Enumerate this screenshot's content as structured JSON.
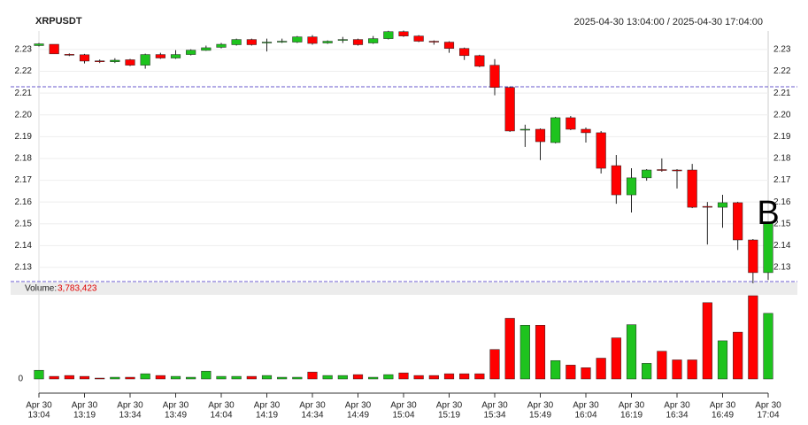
{
  "chart_data": {
    "type": "candlestick",
    "title": "XRPUSDT",
    "range_label": "2025-04-30 13:04:00 / 2025-04-30 17:04:00",
    "category_date": "Apr 30",
    "categories": [
      "13:04",
      null,
      null,
      "13:19",
      null,
      null,
      "13:34",
      null,
      null,
      "13:49",
      null,
      null,
      "14:04",
      null,
      null,
      "14:19",
      null,
      null,
      "14:34",
      null,
      null,
      "14:49",
      null,
      null,
      "15:04",
      null,
      null,
      "15:19",
      null,
      null,
      "15:34",
      null,
      null,
      "15:49",
      null,
      null,
      "16:04",
      null,
      null,
      "16:19",
      null,
      null,
      "16:34",
      null,
      null,
      "16:49",
      null,
      null,
      "17:04"
    ],
    "open": [
      2.2318,
      2.2324,
      2.2278,
      2.2276,
      2.2248,
      2.2244,
      2.2253,
      2.2228,
      2.2277,
      2.2261,
      2.2277,
      2.2296,
      2.231,
      2.2322,
      2.2346,
      2.233,
      2.2336,
      2.2334,
      2.2358,
      2.233,
      2.2342,
      2.2346,
      2.233,
      2.235,
      2.2382,
      2.2362,
      2.2338,
      2.2334,
      2.2305,
      2.2272,
      2.2228,
      2.2126,
      2.193,
      2.1934,
      2.1873,
      2.1987,
      2.1934,
      2.1918,
      2.1767,
      2.1633,
      2.1711,
      2.1749,
      2.1747,
      2.1747,
      2.158,
      2.1576,
      2.1597,
      2.1426,
      2.1276
    ],
    "high": [
      2.233,
      2.2324,
      2.2282,
      2.228,
      2.2254,
      2.226,
      2.2257,
      2.2281,
      2.2285,
      2.2297,
      2.2301,
      2.2318,
      2.233,
      2.235,
      2.235,
      2.235,
      2.235,
      2.2362,
      2.2366,
      2.2342,
      2.2358,
      2.235,
      2.2362,
      2.2386,
      2.2387,
      2.2366,
      2.2342,
      2.2338,
      2.2309,
      2.2276,
      2.2256,
      2.213,
      2.1955,
      2.1938,
      2.1991,
      2.1995,
      2.1942,
      2.1926,
      2.1816,
      2.1755,
      2.1751,
      2.18,
      2.1751,
      2.1775,
      2.16,
      2.1633,
      2.1601,
      2.143,
      2.1507
    ],
    "low": [
      2.2314,
      2.228,
      2.227,
      2.2236,
      2.2238,
      2.2238,
      2.2224,
      2.2212,
      2.2257,
      2.2257,
      2.2273,
      2.2294,
      2.2305,
      2.2318,
      2.2318,
      2.2291,
      2.233,
      2.233,
      2.2322,
      2.2326,
      2.233,
      2.2318,
      2.2326,
      2.2346,
      2.2358,
      2.2334,
      2.2322,
      2.2285,
      2.2252,
      2.2219,
      2.209,
      2.1922,
      2.1853,
      2.1792,
      2.1869,
      2.193,
      2.1873,
      2.1731,
      2.1592,
      2.1552,
      2.1698,
      2.1739,
      2.1662,
      2.1572,
      2.1405,
      2.1482,
      2.138,
      2.1227,
      2.1243
    ],
    "close": [
      2.2326,
      2.228,
      2.2274,
      2.2247,
      2.2246,
      2.2251,
      2.2228,
      2.2277,
      2.2261,
      2.2277,
      2.2297,
      2.2308,
      2.2324,
      2.2346,
      2.2322,
      2.2334,
      2.2338,
      2.2358,
      2.2328,
      2.2338,
      2.2346,
      2.2322,
      2.235,
      2.2382,
      2.2362,
      2.2338,
      2.2336,
      2.2305,
      2.2272,
      2.2223,
      2.2126,
      2.1926,
      2.1934,
      2.1877,
      2.1987,
      2.1934,
      2.1918,
      2.1755,
      2.1633,
      2.1711,
      2.1747,
      2.1747,
      2.1745,
      2.1576,
      2.1578,
      2.1597,
      2.1426,
      2.1276,
      2.1503
    ],
    "volume": [
      500000,
      150000,
      200000,
      150000,
      50000,
      100000,
      100000,
      300000,
      200000,
      150000,
      100000,
      450000,
      150000,
      150000,
      150000,
      200000,
      100000,
      100000,
      400000,
      200000,
      200000,
      250000,
      100000,
      250000,
      350000,
      200000,
      200000,
      300000,
      300000,
      300000,
      1700000,
      3500000,
      3100000,
      3100000,
      1060000,
      800000,
      650000,
      1200000,
      2370000,
      3130000,
      900000,
      1600000,
      1100000,
      1100000,
      4400000,
      2200000,
      2700000,
      4800000,
      3783423
    ],
    "up_color": "#1ec31e",
    "down_color": "#ff0000",
    "ylim": [
      2.1235,
      2.2385
    ],
    "yticks": [
      2.13,
      2.14,
      2.15,
      2.16,
      2.17,
      2.18,
      2.19,
      {
        "value": 2.2,
        "label": "2.20"
      },
      2.21,
      2.22,
      2.23
    ],
    "vol_ylim": [
      0,
      4850000
    ],
    "vol_yticks": [
      0
    ],
    "volume_label": "Volume:",
    "volume_value_label": "3,783,423",
    "hlines": [
      2.2129,
      2.1235
    ],
    "hline_color": "#6a5acd",
    "annotation": {
      "text": "B",
      "index": 48,
      "value": 2.154
    },
    "grid": true
  }
}
